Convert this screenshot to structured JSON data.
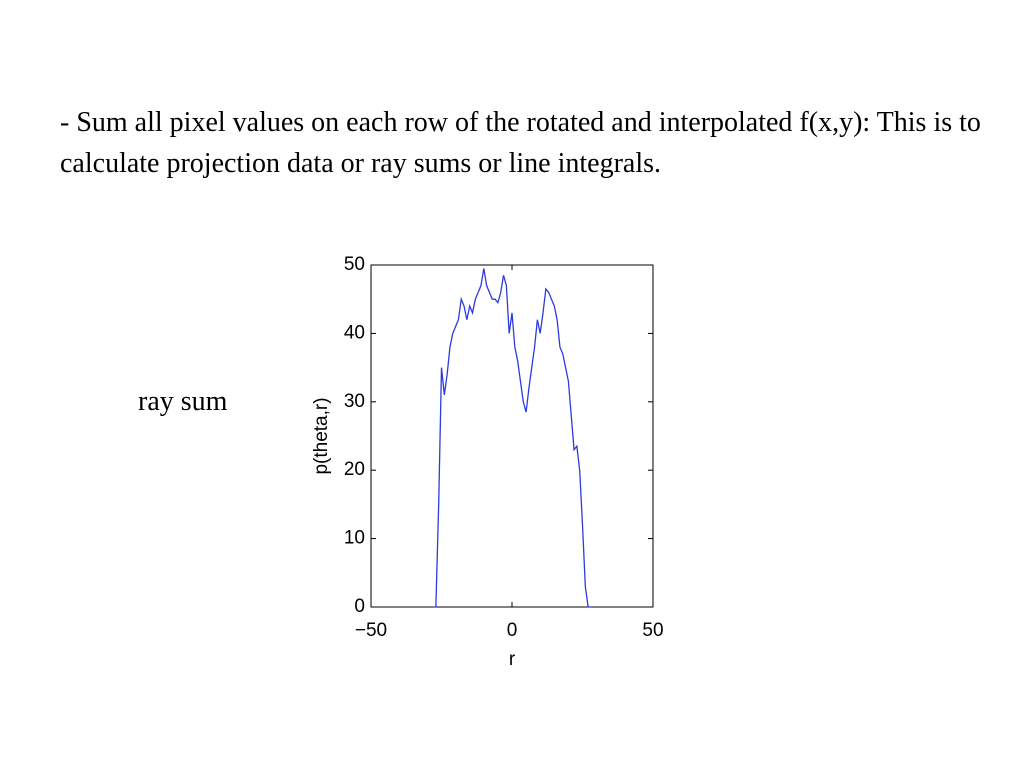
{
  "text": "- Sum all pixel values on each row of the rotated and interpolated f(x,y): This is to calculate projection data or ray sums or line integrals.",
  "side_label": "ray sum",
  "chart_data": {
    "type": "line",
    "xlabel": "r",
    "ylabel": "p(theta,r)",
    "x": [
      -28,
      -27,
      -26,
      -25,
      -24,
      -23,
      -22,
      -21,
      -20,
      -19,
      -18,
      -17,
      -16,
      -15,
      -14,
      -13,
      -12,
      -11,
      -10,
      -9,
      -8,
      -7,
      -6,
      -5,
      -4,
      -3,
      -2,
      -1,
      0,
      1,
      2,
      3,
      4,
      5,
      6,
      7,
      8,
      9,
      10,
      11,
      12,
      13,
      14,
      15,
      16,
      17,
      18,
      19,
      20,
      21,
      22,
      23,
      24,
      25,
      26,
      27,
      28
    ],
    "series": [
      {
        "color": "#2b3be0",
        "values": [
          0,
          0,
          15,
          35,
          31,
          34,
          38,
          40,
          41,
          42,
          45,
          44,
          42,
          44,
          43,
          45,
          46,
          47,
          49.5,
          47,
          46,
          45,
          45,
          44.5,
          46,
          48.5,
          47,
          40,
          43,
          38,
          36,
          33,
          30,
          28.5,
          32,
          35,
          38,
          42,
          40,
          43,
          46.5,
          46,
          45,
          44,
          42,
          38,
          37,
          35,
          33,
          28,
          23,
          23.5,
          20,
          12,
          3,
          0,
          0
        ]
      }
    ],
    "xlim": [
      -50,
      50
    ],
    "xticks": [
      {
        "value": -50,
        "label": "−50"
      },
      0,
      50
    ],
    "ylim": [
      0,
      50
    ],
    "yticks": [
      0,
      10,
      20,
      30,
      40,
      50
    ]
  }
}
